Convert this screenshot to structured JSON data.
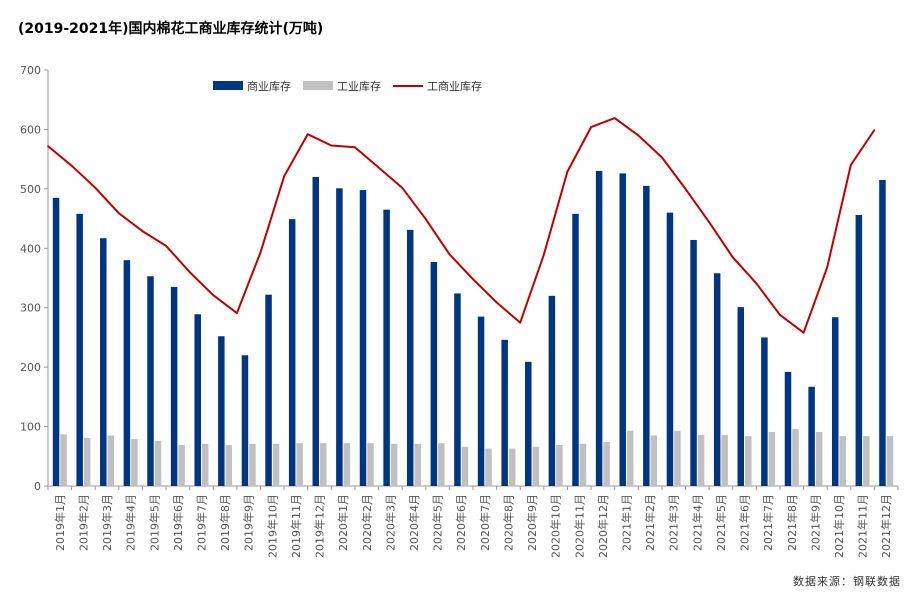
{
  "chart_data": {
    "type": "bar",
    "title": "(2019-2021年)国内棉花工商业库存统计(万吨)",
    "source": "数据来源：钢联数据",
    "ylim": [
      0,
      700
    ],
    "yticks": [
      0,
      100,
      200,
      300,
      400,
      500,
      600,
      700
    ],
    "categories": [
      "2019年1月",
      "2019年2月",
      "2019年3月",
      "2019年4月",
      "2019年5月",
      "2019年6月",
      "2019年7月",
      "2019年8月",
      "2019年9月",
      "2019年10月",
      "2019年11月",
      "2019年12月",
      "2020年1月",
      "2020年2月",
      "2020年3月",
      "2020年4月",
      "2020年5月",
      "2020年6月",
      "2020年7月",
      "2020年8月",
      "2020年9月",
      "2020年10月",
      "2020年11月",
      "2020年12月",
      "2021年1月",
      "2021年2月",
      "2021年3月",
      "2021年4月",
      "2021年5月",
      "2021年6月",
      "2021年7月",
      "2021年8月",
      "2021年9月",
      "2021年10月",
      "2021年11月",
      "2021年12月"
    ],
    "series": [
      {
        "name": "商业库存",
        "type": "bar",
        "color": "#003580",
        "values": [
          485,
          458,
          417,
          380,
          353,
          335,
          289,
          252,
          220,
          322,
          449,
          520,
          501,
          498,
          465,
          431,
          377,
          324,
          285,
          246,
          209,
          320,
          458,
          530,
          526,
          505,
          460,
          414,
          358,
          301,
          250,
          192,
          167,
          284,
          456,
          515
        ]
      },
      {
        "name": "工业库存",
        "type": "bar",
        "color": "#c0c0c0",
        "values": [
          87,
          81,
          85,
          79,
          76,
          69,
          71,
          69,
          71,
          71,
          72,
          72,
          72,
          72,
          71,
          71,
          72,
          66,
          63,
          63,
          66,
          69,
          71,
          74,
          93,
          85,
          93,
          86,
          86,
          84,
          91,
          96,
          91,
          84,
          84,
          84
        ]
      },
      {
        "name": "工商业库存",
        "type": "line",
        "color": "#c00000",
        "values": [
          572,
          539,
          502,
          459,
          429,
          404,
          360,
          321,
          291,
          393,
          521,
          592,
          573,
          570,
          536,
          502,
          449,
          390,
          348,
          309,
          275,
          389,
          529,
          604,
          619,
          590,
          553,
          500,
          444,
          385,
          341,
          288,
          258,
          368,
          540,
          599
        ]
      }
    ],
    "legend": "top-center",
    "grid": false
  }
}
